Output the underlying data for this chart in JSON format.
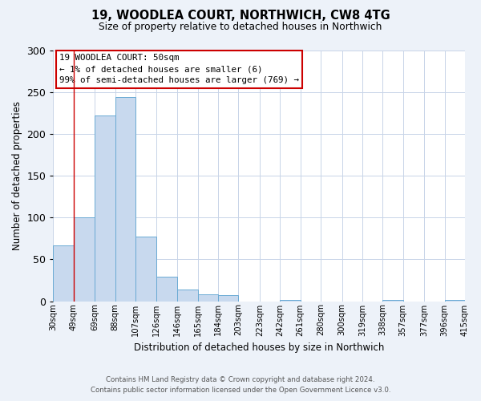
{
  "title": "19, WOODLEA COURT, NORTHWICH, CW8 4TG",
  "subtitle": "Size of property relative to detached houses in Northwich",
  "xlabel": "Distribution of detached houses by size in Northwich",
  "ylabel": "Number of detached properties",
  "bar_edges": [
    30,
    49,
    69,
    88,
    107,
    126,
    146,
    165,
    184,
    203,
    223,
    242,
    261,
    280,
    300,
    319,
    338,
    357,
    377,
    396,
    415
  ],
  "bar_heights": [
    67,
    100,
    222,
    244,
    77,
    29,
    14,
    8,
    7,
    0,
    0,
    1,
    0,
    0,
    0,
    0,
    1,
    0,
    0,
    1
  ],
  "bar_color": "#c8d9ee",
  "bar_edge_color": "#6aaad4",
  "tick_labels": [
    "30sqm",
    "49sqm",
    "69sqm",
    "88sqm",
    "107sqm",
    "126sqm",
    "146sqm",
    "165sqm",
    "184sqm",
    "203sqm",
    "223sqm",
    "242sqm",
    "261sqm",
    "280sqm",
    "300sqm",
    "319sqm",
    "338sqm",
    "357sqm",
    "377sqm",
    "396sqm",
    "415sqm"
  ],
  "ylim": [
    0,
    300
  ],
  "yticks": [
    0,
    50,
    100,
    150,
    200,
    250,
    300
  ],
  "vline_x": 49,
  "vline_color": "#cc0000",
  "annotation_line1": "19 WOODLEA COURT: 50sqm",
  "annotation_line2": "← 1% of detached houses are smaller (6)",
  "annotation_line3": "99% of semi-detached houses are larger (769) →",
  "annotation_box_color": "#cc0000",
  "footer_line1": "Contains HM Land Registry data © Crown copyright and database right 2024.",
  "footer_line2": "Contains public sector information licensed under the Open Government Licence v3.0.",
  "bg_color": "#edf2f9",
  "plot_bg_color": "#ffffff",
  "grid_color": "#c8d4e8"
}
